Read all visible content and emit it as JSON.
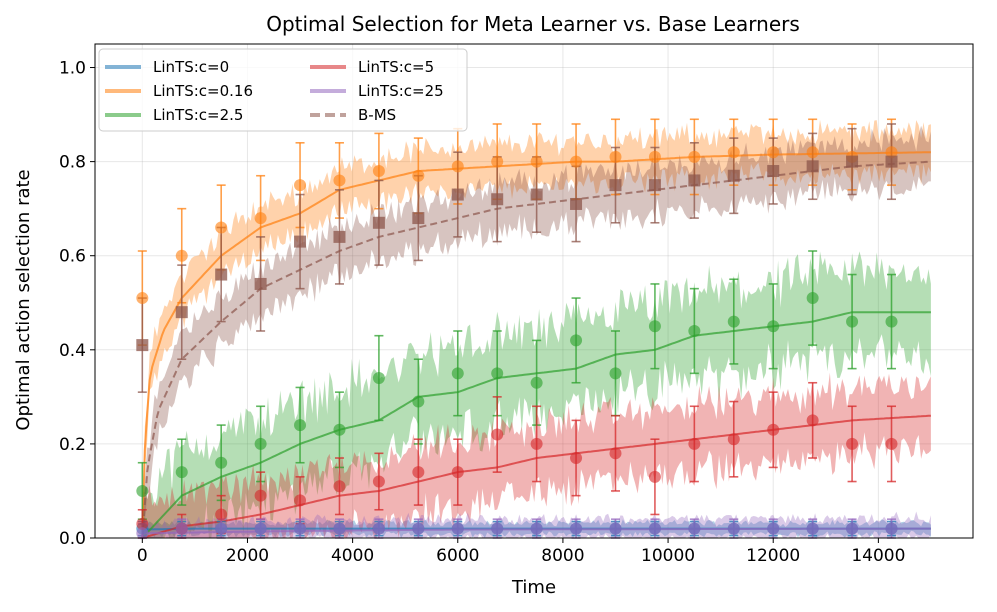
{
  "chart_data": {
    "type": "line",
    "title": "Optimal Selection for Meta Learner vs. Base Learners",
    "xlabel": "Time",
    "ylabel": "Optimal action selection rate",
    "xlim": [
      -900,
      15800
    ],
    "ylim": [
      0,
      1.05
    ],
    "grid": true,
    "legend_position": "top-left",
    "x_ticks": [
      0,
      2000,
      4000,
      6000,
      8000,
      10000,
      12000,
      14000
    ],
    "x_tick_labels": [
      "0",
      "2000",
      "4000",
      "6000",
      "8000",
      "10000",
      "12000",
      "14000"
    ],
    "y_ticks": [
      0,
      0.2,
      0.4,
      0.6,
      0.8,
      1.0
    ],
    "y_tick_labels": [
      "0.0",
      "0.2",
      "0.4",
      "0.6",
      "0.8",
      "1.0"
    ],
    "x_max": 15000,
    "x": [
      0,
      750,
      1500,
      2250,
      3000,
      3750,
      4500,
      5250,
      6000,
      6750,
      7500,
      8250,
      9000,
      9750,
      10500,
      11250,
      12000,
      12750,
      13500,
      14250
    ],
    "series": [
      {
        "name": "LinTS:c=0",
        "color": "#1f77b4",
        "style": "solid",
        "marker": "circle",
        "band": 0.012,
        "curve": [
          [
            0,
            0.018
          ],
          [
            1000,
            0.02
          ],
          [
            15000,
            0.02
          ]
        ],
        "values": [
          0.02,
          0.02,
          0.02,
          0.02,
          0.02,
          0.02,
          0.02,
          0.02,
          0.02,
          0.02,
          0.02,
          0.02,
          0.02,
          0.02,
          0.02,
          0.02,
          0.02,
          0.02,
          0.02,
          0.02
        ],
        "err": [
          0.015,
          0.015,
          0.015,
          0.015,
          0.015,
          0.015,
          0.015,
          0.015,
          0.015,
          0.015,
          0.015,
          0.015,
          0.015,
          0.015,
          0.015,
          0.015,
          0.015,
          0.015,
          0.015,
          0.015
        ]
      },
      {
        "name": "LinTS:c=0.16",
        "color": "#ff7f0e",
        "style": "solid",
        "marker": "circle",
        "band": 0.045,
        "curve": [
          [
            0,
            0.0
          ],
          [
            50,
            0.2
          ],
          [
            150,
            0.35
          ],
          [
            400,
            0.44
          ],
          [
            750,
            0.51
          ],
          [
            1500,
            0.6
          ],
          [
            2250,
            0.66
          ],
          [
            3000,
            0.69
          ],
          [
            3750,
            0.74
          ],
          [
            4500,
            0.76
          ],
          [
            5250,
            0.78
          ],
          [
            6000,
            0.785
          ],
          [
            6750,
            0.79
          ],
          [
            7500,
            0.795
          ],
          [
            8250,
            0.8
          ],
          [
            9000,
            0.8
          ],
          [
            10500,
            0.81
          ],
          [
            12000,
            0.815
          ],
          [
            15000,
            0.82
          ]
        ],
        "values": [
          0.51,
          0.6,
          0.66,
          0.68,
          0.75,
          0.76,
          0.78,
          0.77,
          0.79,
          0.8,
          0.8,
          0.8,
          0.81,
          0.81,
          0.81,
          0.82,
          0.82,
          0.82,
          0.81,
          0.82
        ],
        "err": [
          0.1,
          0.1,
          0.09,
          0.09,
          0.09,
          0.08,
          0.08,
          0.08,
          0.08,
          0.08,
          0.08,
          0.08,
          0.08,
          0.08,
          0.08,
          0.07,
          0.07,
          0.07,
          0.07,
          0.07
        ]
      },
      {
        "name": "LinTS:c=2.5",
        "color": "#2ca02c",
        "style": "solid",
        "marker": "circle",
        "band": 0.09,
        "curve": [
          [
            0,
            0.0
          ],
          [
            750,
            0.09
          ],
          [
            1500,
            0.13
          ],
          [
            2250,
            0.16
          ],
          [
            3000,
            0.2
          ],
          [
            3750,
            0.23
          ],
          [
            4500,
            0.25
          ],
          [
            5250,
            0.3
          ],
          [
            6000,
            0.31
          ],
          [
            6750,
            0.34
          ],
          [
            7500,
            0.35
          ],
          [
            8250,
            0.36
          ],
          [
            9000,
            0.39
          ],
          [
            9750,
            0.4
          ],
          [
            10500,
            0.43
          ],
          [
            11250,
            0.44
          ],
          [
            12000,
            0.45
          ],
          [
            12750,
            0.46
          ],
          [
            13500,
            0.48
          ],
          [
            15000,
            0.48
          ]
        ],
        "values": [
          0.1,
          0.14,
          0.16,
          0.2,
          0.24,
          0.23,
          0.34,
          0.29,
          0.35,
          0.35,
          0.33,
          0.42,
          0.35,
          0.45,
          0.44,
          0.46,
          0.45,
          0.51,
          0.46,
          0.46
        ],
        "err": [
          0.06,
          0.07,
          0.08,
          0.08,
          0.08,
          0.08,
          0.09,
          0.09,
          0.09,
          0.09,
          0.09,
          0.09,
          0.09,
          0.09,
          0.09,
          0.09,
          0.09,
          0.1,
          0.1,
          0.1
        ]
      },
      {
        "name": "LinTS:c=5",
        "color": "#d62728",
        "style": "solid",
        "marker": "circle",
        "band": 0.07,
        "curve": [
          [
            0,
            0.0
          ],
          [
            750,
            0.025
          ],
          [
            1500,
            0.035
          ],
          [
            2250,
            0.05
          ],
          [
            3000,
            0.07
          ],
          [
            3750,
            0.09
          ],
          [
            4500,
            0.1
          ],
          [
            5250,
            0.12
          ],
          [
            6000,
            0.14
          ],
          [
            6750,
            0.15
          ],
          [
            7500,
            0.17
          ],
          [
            8250,
            0.18
          ],
          [
            9000,
            0.19
          ],
          [
            9750,
            0.2
          ],
          [
            10500,
            0.21
          ],
          [
            11250,
            0.22
          ],
          [
            12000,
            0.23
          ],
          [
            12750,
            0.24
          ],
          [
            13500,
            0.25
          ],
          [
            15000,
            0.26
          ]
        ],
        "values": [
          0.03,
          0.02,
          0.05,
          0.09,
          0.08,
          0.11,
          0.12,
          0.14,
          0.14,
          0.22,
          0.2,
          0.17,
          0.18,
          0.13,
          0.2,
          0.21,
          0.23,
          0.25,
          0.2,
          0.2
        ],
        "err": [
          0.03,
          0.03,
          0.04,
          0.05,
          0.05,
          0.06,
          0.06,
          0.07,
          0.07,
          0.08,
          0.08,
          0.08,
          0.08,
          0.08,
          0.08,
          0.08,
          0.08,
          0.08,
          0.08,
          0.08
        ]
      },
      {
        "name": "LinTS:c=25",
        "color": "#9467bd",
        "style": "solid",
        "marker": "circle",
        "band": 0.022,
        "curve": [
          [
            0,
            0.01
          ],
          [
            3000,
            0.015
          ],
          [
            6000,
            0.018
          ],
          [
            15000,
            0.02
          ]
        ],
        "values": [
          0.01,
          0.02,
          0.02,
          0.02,
          0.02,
          0.02,
          0.02,
          0.02,
          0.02,
          0.02,
          0.02,
          0.02,
          0.02,
          0.02,
          0.02,
          0.02,
          0.02,
          0.02,
          0.02,
          0.02
        ],
        "err": [
          0.02,
          0.02,
          0.02,
          0.02,
          0.02,
          0.02,
          0.02,
          0.02,
          0.02,
          0.02,
          0.02,
          0.02,
          0.02,
          0.02,
          0.02,
          0.02,
          0.02,
          0.02,
          0.02,
          0.02
        ]
      },
      {
        "name": "B-MS",
        "color": "#8c564b",
        "style": "dashed",
        "marker": "square",
        "band": 0.05,
        "curve": [
          [
            0,
            0.0
          ],
          [
            100,
            0.15
          ],
          [
            300,
            0.27
          ],
          [
            750,
            0.38
          ],
          [
            1500,
            0.46
          ],
          [
            2250,
            0.53
          ],
          [
            3000,
            0.57
          ],
          [
            3750,
            0.61
          ],
          [
            4500,
            0.64
          ],
          [
            5250,
            0.66
          ],
          [
            6000,
            0.68
          ],
          [
            6750,
            0.7
          ],
          [
            7500,
            0.71
          ],
          [
            8250,
            0.72
          ],
          [
            9000,
            0.73
          ],
          [
            9750,
            0.74
          ],
          [
            10500,
            0.75
          ],
          [
            11250,
            0.76
          ],
          [
            12000,
            0.77
          ],
          [
            12750,
            0.78
          ],
          [
            13500,
            0.79
          ],
          [
            15000,
            0.8
          ]
        ],
        "values": [
          0.41,
          0.48,
          0.56,
          0.54,
          0.63,
          0.64,
          0.67,
          0.68,
          0.73,
          0.72,
          0.73,
          0.71,
          0.75,
          0.75,
          0.76,
          0.77,
          0.78,
          0.79,
          0.8,
          0.8
        ],
        "err": [
          0.1,
          0.1,
          0.1,
          0.1,
          0.1,
          0.1,
          0.09,
          0.09,
          0.09,
          0.09,
          0.08,
          0.08,
          0.08,
          0.08,
          0.08,
          0.08,
          0.07,
          0.07,
          0.07,
          0.08
        ]
      }
    ]
  }
}
